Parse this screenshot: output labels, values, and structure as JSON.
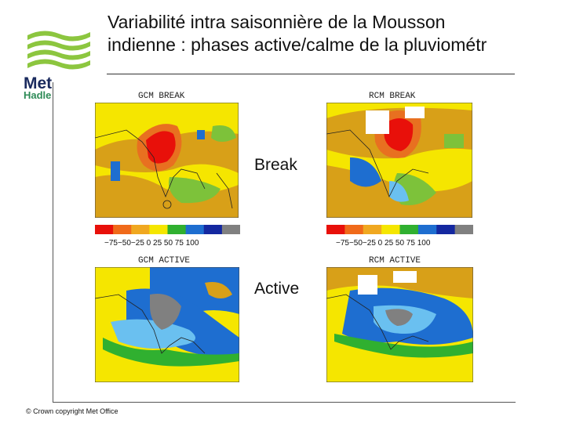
{
  "slide": {
    "title_line1": "Variabilité intra saisonnière de la Mousson",
    "title_line2": "indienne : phases active/calme de la pluviométr"
  },
  "logo": {
    "text": "Met",
    "sub": "Hadle"
  },
  "maps": {
    "gcm_break_title": "GCM BREAK",
    "rcm_break_title": "RCM BREAK",
    "gcm_active_title": "GCM ACTIVE",
    "rcm_active_title": "RCM ACTIVE"
  },
  "labels": {
    "break": "Break",
    "active": "Active"
  },
  "colorbar": {
    "ticks_left": "−75−50−25  0   25  50  75 100",
    "ticks_right": "−75−50−25  0   25  50  75 100",
    "colors": [
      "#e8100a",
      "#f06a1a",
      "#f0a820",
      "#f5e600",
      "#30b030",
      "#1e6ed0",
      "#1428a0",
      "#808080"
    ]
  },
  "footer": {
    "copyright": "© Crown copyright   Met Office"
  }
}
